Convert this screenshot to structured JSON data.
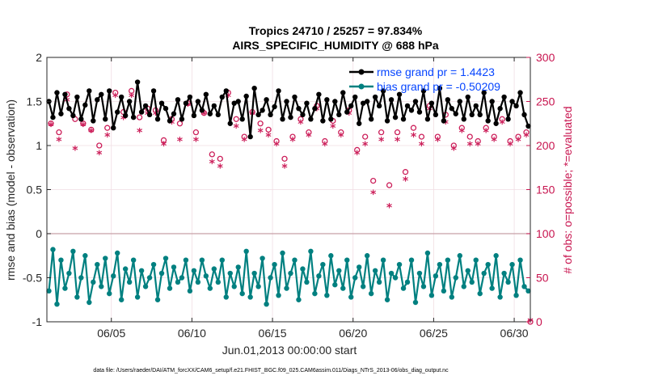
{
  "chart_data": {
    "type": "line",
    "title": "Tropics 24710 / 25257 = 97.834%",
    "subtitle": "AIRS_SPECIFIC_HUMIDITY @ 688 hPa",
    "xlabel": "Jun.01,2013 00:00:00 start",
    "ylabel_left": "rmse and bias (model - observation)",
    "ylabel_right": "# of obs: o=possible; *=evaluated",
    "ylim_left": [
      -1,
      2
    ],
    "ylim_right": [
      0,
      300
    ],
    "xlim_days": [
      1.0,
      31.0
    ],
    "x_ticks": [
      5,
      10,
      15,
      20,
      25,
      30
    ],
    "x_tick_labels": [
      "06/05",
      "06/10",
      "06/15",
      "06/20",
      "06/25",
      "06/30"
    ],
    "y_ticks_left": [
      -1,
      -0.5,
      0,
      0.5,
      1,
      1.5,
      2
    ],
    "y_tick_labels_left": [
      "-1",
      "-0.5",
      "0",
      "0.5",
      "1",
      "1.5",
      "2"
    ],
    "y_ticks_right": [
      0,
      50,
      100,
      150,
      200,
      250,
      300
    ],
    "y_tick_labels_right": [
      "0",
      "50",
      "100",
      "150",
      "200",
      "250",
      "300"
    ],
    "zero_line": 0,
    "legend": [
      {
        "label": "rmse grand pr = 1.4423",
        "color": "#000000"
      },
      {
        "label": "bias grand pr = -0.50209",
        "color": "#008080"
      }
    ],
    "footnote": "data file: /Users/raeder/DAI/ATM_forcXX/CAM6_setup/f.e21.FHIST_BGC.f09_025.CAM6assim.011/Diags_NTrS_2013-06/obs_diag_output.nc",
    "series": [
      {
        "name": "rmse",
        "axis": "left",
        "color": "#000000",
        "x0": 1.125,
        "dx": 0.25,
        "values": [
          1.5,
          1.32,
          1.6,
          1.36,
          1.58,
          1.42,
          1.34,
          1.55,
          1.3,
          1.46,
          1.62,
          1.28,
          1.52,
          1.58,
          1.3,
          1.62,
          1.2,
          1.38,
          1.55,
          1.34,
          1.5,
          1.32,
          1.72,
          1.38,
          1.45,
          1.35,
          1.62,
          1.3,
          1.48,
          1.42,
          1.28,
          1.36,
          1.52,
          1.3,
          1.48,
          1.55,
          1.34,
          1.5,
          1.4,
          1.58,
          1.36,
          1.45,
          1.35,
          1.55,
          1.62,
          1.25,
          1.48,
          1.5,
          1.3,
          1.56,
          1.1,
          1.65,
          1.35,
          1.4,
          1.52,
          1.35,
          1.44,
          1.62,
          1.3,
          1.5,
          1.32,
          1.55,
          1.42,
          1.35,
          1.48,
          1.3,
          1.42,
          1.58,
          1.28,
          1.52,
          1.3,
          1.5,
          1.35,
          1.6,
          1.38,
          1.45,
          1.55,
          1.25,
          1.48,
          1.5,
          1.3,
          1.55,
          1.45,
          1.62,
          1.28,
          1.52,
          1.32,
          1.58,
          1.3,
          1.45,
          1.4,
          1.5,
          1.38,
          1.62,
          1.3,
          1.48,
          1.35,
          1.65,
          1.28,
          1.52,
          1.42,
          1.36,
          1.5,
          1.3,
          1.55,
          1.35,
          1.45,
          1.35,
          1.6,
          1.28,
          1.5,
          1.25,
          1.42,
          1.55,
          1.3,
          1.5,
          1.45,
          1.6,
          1.35,
          1.22
        ]
      },
      {
        "name": "bias",
        "axis": "left",
        "color": "#008080",
        "x0": 1.125,
        "dx": 0.25,
        "values": [
          -0.65,
          -0.18,
          -0.8,
          -0.3,
          -0.62,
          -0.45,
          -0.2,
          -0.72,
          -0.5,
          -0.25,
          -0.78,
          -0.55,
          -0.35,
          -0.6,
          -0.28,
          -0.68,
          -0.48,
          -0.22,
          -0.75,
          -0.4,
          -0.55,
          -0.3,
          -0.72,
          -0.42,
          -0.6,
          -0.5,
          -0.35,
          -0.75,
          -0.45,
          -0.28,
          -0.62,
          -0.38,
          -0.55,
          -0.5,
          -0.3,
          -0.65,
          -0.42,
          -0.55,
          -0.3,
          -0.48,
          -0.62,
          -0.4,
          -0.55,
          -0.3,
          -0.72,
          -0.45,
          -0.6,
          -0.38,
          -0.68,
          -0.2,
          -0.72,
          -0.45,
          -0.6,
          -0.28,
          -0.8,
          -0.5,
          -0.35,
          -0.7,
          -0.22,
          -0.62,
          -0.45,
          -0.3,
          -0.75,
          -0.4,
          -0.55,
          -0.2,
          -0.68,
          -0.48,
          -0.35,
          -0.7,
          -0.25,
          -0.58,
          -0.42,
          -0.62,
          -0.3,
          -0.72,
          -0.5,
          -0.38,
          -0.6,
          -0.25,
          -0.68,
          -0.42,
          -0.55,
          -0.3,
          -0.75,
          -0.45,
          -0.5,
          -0.35,
          -0.62,
          -0.55,
          -0.3,
          -0.78,
          -0.45,
          -0.6,
          -0.22,
          -0.7,
          -0.48,
          -0.35,
          -0.65,
          -0.3,
          -0.72,
          -0.5,
          -0.25,
          -0.6,
          -0.42,
          -0.55,
          -0.3,
          -0.68,
          -0.45,
          -0.35,
          -0.62,
          -0.25,
          -0.72,
          -0.45,
          -0.55,
          -0.35,
          -0.7,
          -0.3,
          -0.6,
          -0.65
        ]
      },
      {
        "name": "obs possible (o)",
        "axis": "right",
        "marker": "o",
        "color": "#cc1f5a",
        "x0": 1.25,
        "dx": 0.5,
        "values": [
          225,
          215,
          258,
          230,
          225,
          218,
          200,
          220,
          260,
          238,
          262,
          232,
          242,
          240,
          206,
          230,
          225,
          248,
          215,
          237,
          190,
          185,
          260,
          230,
          210,
          238,
          225,
          218,
          205,
          185,
          210,
          230,
          215,
          245,
          205,
          228,
          215,
          240,
          195,
          210,
          160,
          215,
          155,
          215,
          170,
          220,
          210,
          245,
          210,
          235,
          200,
          220,
          210,
          205,
          220,
          210,
          230,
          205,
          210,
          215
        ]
      },
      {
        "name": "obs evaluated (*)",
        "axis": "right",
        "marker": "*",
        "color": "#cc1f5a",
        "x0": 1.25,
        "dx": 0.5,
        "values": [
          222,
          205,
          250,
          195,
          222,
          215,
          190,
          210,
          255,
          230,
          255,
          215,
          235,
          235,
          200,
          225,
          205,
          245,
          205,
          235,
          180,
          175,
          255,
          220,
          205,
          235,
          215,
          210,
          200,
          175,
          205,
          225,
          210,
          240,
          200,
          220,
          210,
          235,
          190,
          200,
          145,
          205,
          130,
          205,
          160,
          210,
          200,
          240,
          205,
          225,
          195,
          215,
          200,
          200,
          215,
          205,
          225,
          200,
          205,
          210
        ]
      }
    ]
  }
}
